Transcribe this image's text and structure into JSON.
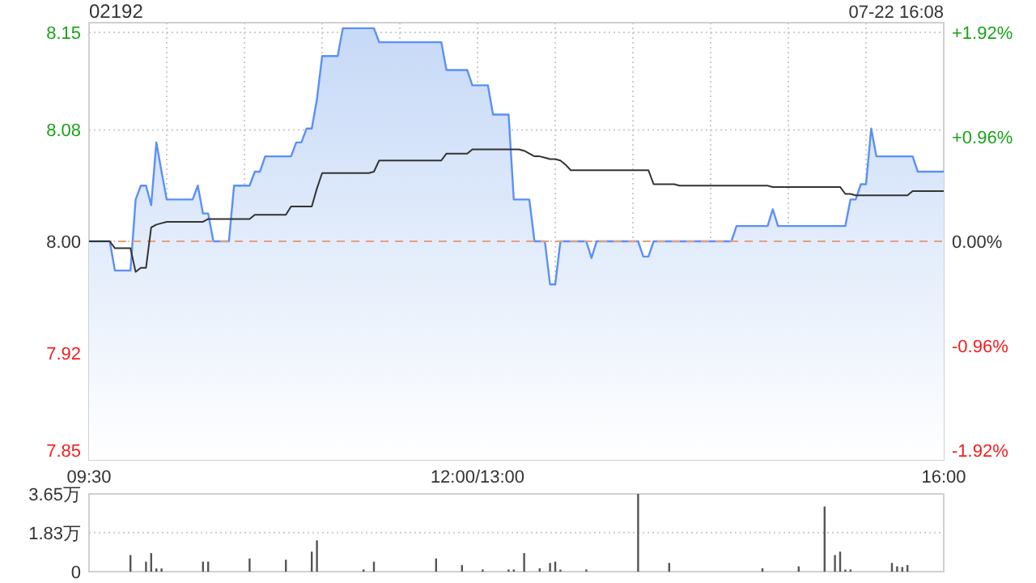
{
  "chart_data": [
    {
      "type": "area",
      "title": "02192",
      "subtitle": "07-22 16:08",
      "categories": [
        "09:30",
        null,
        null,
        null,
        null,
        null,
        null,
        null,
        null,
        null,
        null,
        null,
        null,
        null,
        null,
        null,
        null,
        null,
        null,
        null,
        null,
        null,
        null,
        null,
        null,
        null,
        null,
        null,
        null,
        null,
        null,
        null,
        null,
        null,
        null,
        null,
        null,
        null,
        null,
        null,
        null,
        null,
        null,
        null,
        null,
        null,
        null,
        null,
        null,
        null,
        null,
        null,
        null,
        null,
        null,
        null,
        null,
        null,
        null,
        null,
        null,
        null,
        null,
        null,
        null,
        null,
        null,
        null,
        null,
        null,
        null,
        null,
        null,
        null,
        null,
        "12:00/13:00",
        null,
        null,
        null,
        null,
        null,
        null,
        null,
        null,
        null,
        null,
        null,
        null,
        null,
        null,
        null,
        null,
        null,
        null,
        null,
        null,
        null,
        null,
        null,
        null,
        null,
        null,
        null,
        null,
        null,
        null,
        null,
        null,
        null,
        null,
        null,
        null,
        null,
        null,
        null,
        null,
        null,
        null,
        null,
        null,
        null,
        null,
        null,
        null,
        null,
        null,
        null,
        null,
        null,
        null,
        null,
        null,
        null,
        null,
        null,
        null,
        null,
        null,
        null,
        null,
        null,
        null,
        null,
        null,
        null,
        null,
        null,
        null,
        null,
        null,
        null,
        null,
        null,
        null,
        null,
        null,
        null,
        null,
        null,
        null,
        null,
        null,
        null,
        null,
        null,
        "16:00"
      ],
      "ylim": [
        7.843,
        8.157
      ],
      "yticks": [
        7.85,
        7.92,
        {
          "value": 8.0,
          "label": "8.00"
        },
        8.08,
        8.15
      ],
      "y2lim": [
        -2.01,
        2.01
      ],
      "y2ticks": [
        {
          "value": 1.92,
          "label": "+1.92%"
        },
        {
          "value": 0.96,
          "label": "+0.96%"
        },
        {
          "value": 0,
          "label": "0.00%"
        },
        {
          "value": -0.96,
          "label": "-0.96%"
        },
        {
          "value": -1.92,
          "label": "-1.92%"
        }
      ],
      "grid": true,
      "ref_lines": [
        {
          "axis": "y",
          "value": 8.0,
          "color": "#e8a07a",
          "line_style": "dashed"
        }
      ],
      "series": [
        {
          "color": "#5b8ff9",
          "values": [
            8.0,
            8.0,
            8.0,
            8.0,
            8.0,
            7.979,
            7.979,
            7.979,
            7.979,
            8.03,
            8.04,
            8.04,
            8.026,
            8.071,
            8.05,
            8.03,
            8.03,
            8.03,
            8.03,
            8.03,
            8.03,
            8.04,
            8.02,
            8.02,
            8.0,
            8.0,
            8.0,
            8.0,
            8.04,
            8.04,
            8.04,
            8.04,
            8.05,
            8.05,
            8.061,
            8.061,
            8.061,
            8.061,
            8.061,
            8.061,
            8.071,
            8.071,
            8.081,
            8.081,
            8.102,
            8.133,
            8.133,
            8.133,
            8.133,
            8.153,
            8.153,
            8.153,
            8.153,
            8.153,
            8.153,
            8.153,
            8.143,
            8.143,
            8.143,
            8.143,
            8.143,
            8.143,
            8.143,
            8.143,
            8.143,
            8.143,
            8.143,
            8.143,
            8.143,
            8.123,
            8.123,
            8.123,
            8.123,
            8.123,
            8.112,
            8.112,
            8.112,
            8.112,
            8.091,
            8.091,
            8.091,
            8.091,
            8.03,
            8.03,
            8.03,
            8.03,
            8.0,
            8.0,
            8.0,
            7.969,
            7.969,
            8.0,
            8.0,
            8.0,
            8.0,
            8.0,
            8.0,
            7.988,
            8.0,
            8.0,
            8.0,
            8.0,
            8.0,
            8.0,
            8.0,
            8.0,
            8.0,
            7.989,
            7.989,
            8.0,
            8.0,
            8.0,
            8.0,
            8.0,
            8.0,
            8.0,
            8.0,
            8.0,
            8.0,
            8.0,
            8.0,
            8.0,
            8.0,
            8.0,
            8.0,
            8.011,
            8.011,
            8.011,
            8.011,
            8.011,
            8.011,
            8.011,
            8.023,
            8.011,
            8.011,
            8.011,
            8.011,
            8.011,
            8.011,
            8.011,
            8.011,
            8.011,
            8.011,
            8.011,
            8.011,
            8.011,
            8.011,
            8.03,
            8.03,
            8.041,
            8.041,
            8.081,
            8.061,
            8.061,
            8.061,
            8.061,
            8.061,
            8.061,
            8.061,
            8.061,
            8.05,
            8.05,
            8.05,
            8.05,
            8.05,
            8.05
          ]
        },
        {
          "type": "line",
          "color": "#333333",
          "values": [
            8.0,
            8.0,
            8.0,
            8.0,
            8.0,
            7.995,
            7.995,
            7.995,
            7.995,
            7.978,
            7.981,
            7.981,
            8.01,
            8.012,
            8.013,
            8.014,
            8.014,
            8.014,
            8.014,
            8.014,
            8.014,
            8.014,
            8.014,
            8.016,
            8.016,
            8.016,
            8.016,
            8.016,
            8.016,
            8.016,
            8.016,
            8.016,
            8.019,
            8.019,
            8.019,
            8.019,
            8.019,
            8.019,
            8.019,
            8.025,
            8.025,
            8.025,
            8.025,
            8.025,
            8.038,
            8.049,
            8.049,
            8.049,
            8.049,
            8.049,
            8.049,
            8.049,
            8.049,
            8.049,
            8.049,
            8.05,
            8.058,
            8.058,
            8.058,
            8.058,
            8.058,
            8.058,
            8.058,
            8.058,
            8.058,
            8.058,
            8.058,
            8.058,
            8.058,
            8.063,
            8.063,
            8.063,
            8.063,
            8.063,
            8.066,
            8.066,
            8.066,
            8.066,
            8.066,
            8.066,
            8.066,
            8.066,
            8.066,
            8.066,
            8.065,
            8.063,
            8.061,
            8.061,
            8.06,
            8.059,
            8.059,
            8.058,
            8.055,
            8.051,
            8.051,
            8.051,
            8.051,
            8.051,
            8.051,
            8.051,
            8.051,
            8.051,
            8.051,
            8.051,
            8.051,
            8.051,
            8.051,
            8.051,
            8.051,
            8.041,
            8.041,
            8.041,
            8.041,
            8.041,
            8.04,
            8.04,
            8.04,
            8.04,
            8.04,
            8.04,
            8.04,
            8.04,
            8.04,
            8.04,
            8.04,
            8.04,
            8.04,
            8.04,
            8.04,
            8.04,
            8.04,
            8.04,
            8.039,
            8.039,
            8.039,
            8.039,
            8.039,
            8.039,
            8.039,
            8.039,
            8.039,
            8.039,
            8.039,
            8.039,
            8.039,
            8.039,
            8.034,
            8.034,
            8.033,
            8.033,
            8.033,
            8.033,
            8.033,
            8.033,
            8.033,
            8.033,
            8.033,
            8.033,
            8.033,
            8.036,
            8.036,
            8.036,
            8.036,
            8.036,
            8.036,
            8.036
          ]
        }
      ]
    },
    {
      "type": "bar",
      "tick_labels": "y",
      "categories": [
        null,
        null,
        null,
        null,
        null,
        null,
        null,
        null,
        null,
        null,
        null,
        null,
        null,
        null,
        null,
        null,
        null,
        null,
        null,
        null,
        null,
        null,
        null,
        null,
        null,
        null,
        null,
        null,
        null,
        null,
        null,
        null,
        null,
        null,
        null,
        null,
        null,
        null,
        null,
        null,
        null,
        null,
        null,
        null,
        null,
        null,
        null,
        null,
        null,
        null,
        null,
        null,
        null,
        null,
        null,
        null,
        null,
        null,
        null,
        null,
        null,
        null,
        null,
        null,
        null,
        null,
        null,
        null,
        null,
        null,
        null,
        null,
        null,
        null,
        null,
        null,
        null,
        null,
        null,
        null,
        null,
        null,
        null,
        null,
        null,
        null,
        null,
        null,
        null,
        null,
        null,
        null,
        null,
        null,
        null,
        null,
        null,
        null,
        null,
        null,
        null,
        null,
        null,
        null,
        null,
        null,
        null,
        null,
        null,
        null,
        null,
        null,
        null,
        null,
        null,
        null,
        null,
        null,
        null,
        null,
        null,
        null,
        null,
        null,
        null,
        null,
        null,
        null,
        null,
        null,
        null,
        null,
        null,
        null,
        null,
        null,
        null,
        null,
        null,
        null,
        null,
        null,
        null,
        null,
        null,
        null,
        null,
        null,
        null,
        null,
        null,
        null,
        null,
        null,
        null,
        null,
        null,
        null,
        null,
        null,
        null,
        null,
        null,
        null,
        null,
        null
      ],
      "ylim": [
        0,
        3.65
      ],
      "yticks": [
        {
          "value": 0,
          "label": "0"
        },
        {
          "value": 1.83,
          "label": "1.83万"
        },
        {
          "value": 3.65,
          "label": "3.65万"
        }
      ],
      "grid": "y",
      "series": [
        {
          "color": "#555555",
          "values": [
            null,
            null,
            null,
            null,
            null,
            null,
            null,
            null,
            0.78,
            null,
            null,
            0.47,
            0.87,
            0.15,
            0.15,
            null,
            null,
            null,
            null,
            null,
            null,
            null,
            0.47,
            0.47,
            null,
            null,
            null,
            null,
            null,
            null,
            null,
            0.62,
            null,
            null,
            null,
            null,
            null,
            null,
            0.56,
            null,
            null,
            null,
            null,
            0.94,
            1.47,
            null,
            null,
            null,
            null,
            null,
            null,
            null,
            null,
            0.1,
            null,
            0.47,
            null,
            null,
            null,
            null,
            null,
            null,
            null,
            null,
            null,
            null,
            null,
            0.62,
            null,
            null,
            null,
            null,
            0.31,
            null,
            null,
            null,
            0.1,
            null,
            null,
            null,
            null,
            0.1,
            0.1,
            null,
            0.87,
            null,
            null,
            0.16,
            null,
            0.41,
            0.47,
            0.1,
            null,
            null,
            null,
            null,
            0.1,
            null,
            null,
            null,
            null,
            null,
            null,
            null,
            null,
            null,
            3.65,
            null,
            null,
            null,
            null,
            null,
            0.41,
            null,
            null,
            null,
            null,
            null,
            null,
            null,
            null,
            null,
            null,
            null,
            null,
            null,
            null,
            null,
            null,
            null,
            0.16,
            null,
            null,
            null,
            null,
            null,
            null,
            0.25,
            null,
            null,
            null,
            null,
            3.06,
            null,
            0.78,
            0.94,
            0.1,
            0.1,
            null,
            null,
            null,
            null,
            null,
            null,
            null,
            0.41,
            0.25,
            0.22,
            0.31,
            null,
            null,
            null,
            null,
            null,
            null,
            null
          ]
        }
      ]
    }
  ]
}
